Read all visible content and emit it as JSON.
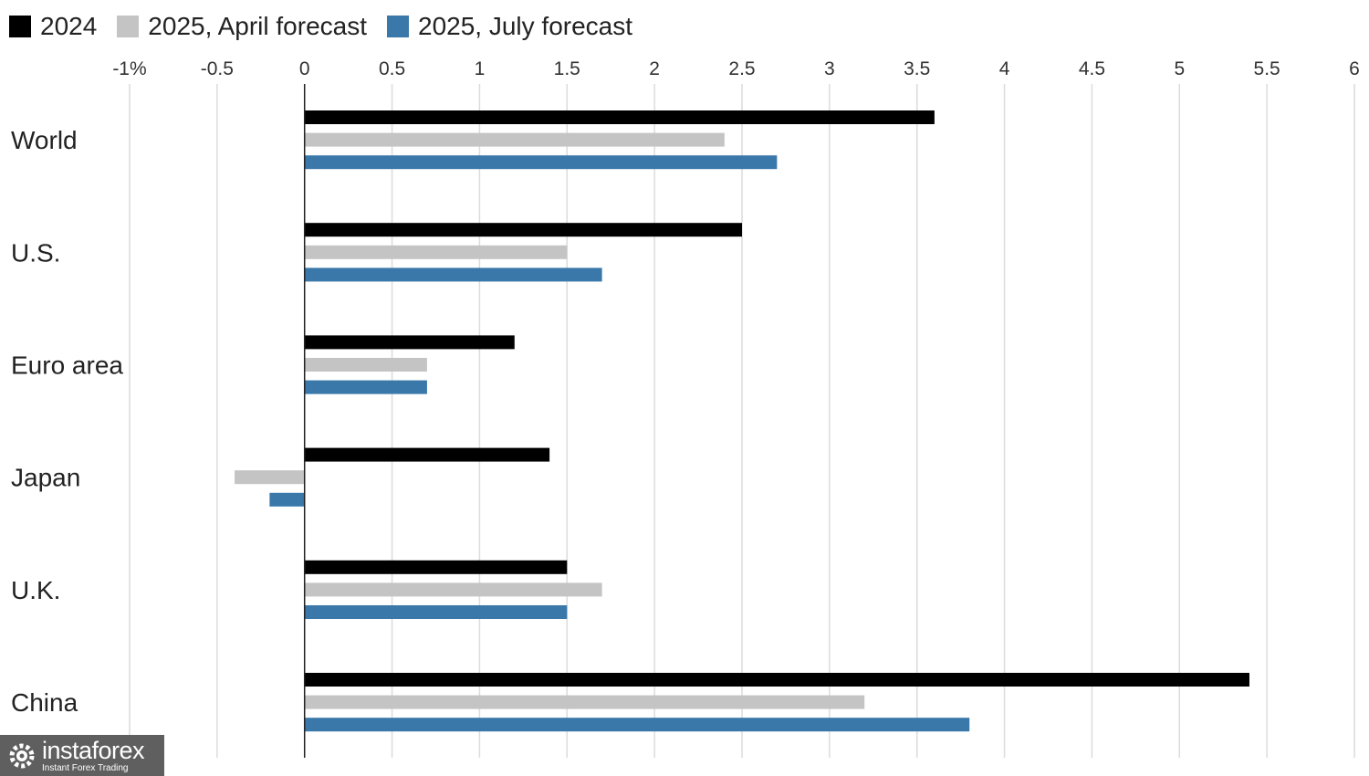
{
  "chart_data": {
    "type": "bar",
    "orientation": "horizontal",
    "categories": [
      "World",
      "U.S.",
      "Euro area",
      "Japan",
      "U.K.",
      "China"
    ],
    "series": [
      {
        "name": "2024",
        "color": "#000000",
        "values": [
          3.6,
          2.5,
          1.2,
          1.4,
          1.5,
          5.4
        ]
      },
      {
        "name": "2025, April forecast",
        "color": "#c4c4c4",
        "values": [
          2.4,
          1.5,
          0.7,
          -0.4,
          1.7,
          3.2
        ]
      },
      {
        "name": "2025, July forecast",
        "color": "#3a78aa",
        "values": [
          2.7,
          1.7,
          0.7,
          -0.2,
          1.5,
          3.8
        ]
      }
    ],
    "xlim": [
      -1,
      6
    ],
    "xticks": [
      -1,
      -0.5,
      0,
      0.5,
      1,
      1.5,
      2,
      2.5,
      3,
      3.5,
      4,
      4.5,
      5,
      5.5,
      6
    ],
    "xtick_labels": [
      "-1%",
      "-0.5",
      "0",
      "0.5",
      "1",
      "1.5",
      "2",
      "2.5",
      "3",
      "3.5",
      "4",
      "4.5",
      "5",
      "5.5",
      "6"
    ],
    "axis_position": "top",
    "grid": true,
    "legend_position": "top-left"
  },
  "watermark": {
    "brand": "instaforex",
    "tagline": "Instant Forex Trading",
    "icon": "gear-logo-icon",
    "background": "#5f5f5f"
  }
}
